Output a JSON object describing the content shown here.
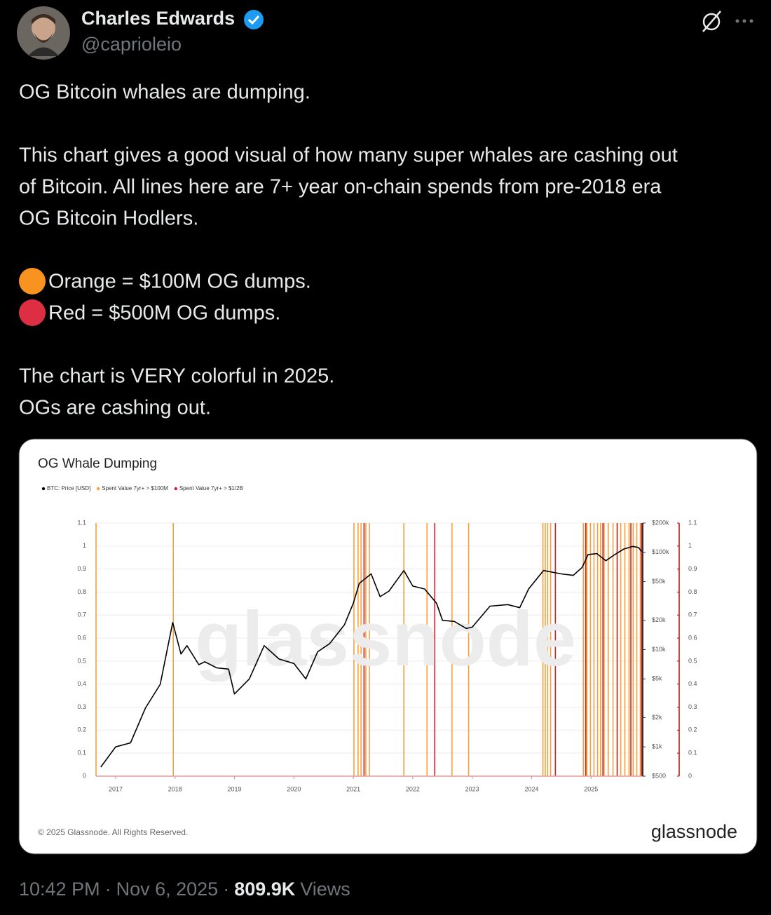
{
  "tweet": {
    "author": {
      "name": "Charles Edwards",
      "handle": "@caprioleio"
    },
    "paragraphs": [
      [
        "OG Bitcoin whales are dumping."
      ],
      [
        "This chart gives a good visual of how many super whales are cashing out",
        "of Bitcoin. All lines here are 7+ year on-chain spends from pre-2018 era",
        "OG Bitcoin Hodlers."
      ],
      [
        "Orange = $100M OG dumps.",
        "Red = $500M OG dumps."
      ],
      [
        "The chart is VERY colorful in 2025.",
        "OGs are cashing out."
      ]
    ],
    "footer": {
      "time": "10:42 PM",
      "separator": "·",
      "date": "Nov 6, 2025",
      "views": "809.9K",
      "views_label": "Views"
    }
  },
  "chart_data": {
    "type": "line",
    "title": "OG Whale Dumping",
    "watermark": "glassnode",
    "copyright": "© 2025 Glassnode. All Rights Reserved.",
    "logo": "glassnode",
    "xlim": [
      2016.67,
      2025.87
    ],
    "xticks": [
      2017,
      2018,
      2019,
      2020,
      2021,
      2022,
      2023,
      2024,
      2025
    ],
    "ylim": [
      0,
      1.1
    ],
    "yticks": [
      0,
      0.1,
      0.2,
      0.3,
      0.4,
      0.5,
      0.6,
      0.7,
      0.8,
      0.9,
      1,
      1.1
    ],
    "y2lim": [
      500,
      200000
    ],
    "y2log": true,
    "y2ticks": [
      {
        "value": 500,
        "label": "$500"
      },
      {
        "value": 1000,
        "label": "$1k"
      },
      {
        "value": 2000,
        "label": "$2k"
      },
      {
        "value": 5000,
        "label": "$5k"
      },
      {
        "value": 10000,
        "label": "$10k"
      },
      {
        "value": 20000,
        "label": "$20k"
      },
      {
        "value": 50000,
        "label": "$50k"
      },
      {
        "value": 100000,
        "label": "$100k"
      },
      {
        "value": 200000,
        "label": "$200k"
      }
    ],
    "grid": true,
    "series": [
      {
        "name": "BTC: Price [USD]",
        "color": "#000000",
        "axis": "y2",
        "style": "line",
        "x": [
          2016.75,
          2017.0,
          2017.25,
          2017.5,
          2017.75,
          2017.96,
          2018.1,
          2018.2,
          2018.4,
          2018.5,
          2018.7,
          2018.9,
          2019.0,
          2019.25,
          2019.5,
          2019.75,
          2020.0,
          2020.2,
          2020.4,
          2020.6,
          2020.85,
          2021.0,
          2021.1,
          2021.3,
          2021.45,
          2021.6,
          2021.85,
          2022.0,
          2022.2,
          2022.4,
          2022.5,
          2022.7,
          2022.9,
          2023.0,
          2023.3,
          2023.6,
          2023.8,
          2023.95,
          2024.2,
          2024.5,
          2024.7,
          2024.85,
          2024.95,
          2025.1,
          2025.25,
          2025.4,
          2025.55,
          2025.7,
          2025.8,
          2025.85
        ],
        "values": [
          620,
          1000,
          1100,
          2500,
          4400,
          19000,
          9000,
          11000,
          7000,
          7500,
          6500,
          6300,
          3500,
          5000,
          11000,
          8000,
          7200,
          5000,
          9500,
          11500,
          18000,
          30000,
          48000,
          60000,
          35000,
          40000,
          65000,
          45000,
          42000,
          30000,
          20000,
          19500,
          16500,
          17000,
          28000,
          29000,
          27000,
          42000,
          65000,
          60000,
          58000,
          70000,
          95000,
          97000,
          82000,
          95000,
          108000,
          115000,
          112000,
          102000
        ]
      },
      {
        "name": "Spent Value 7yr+ > $100M",
        "color": "#f5a03c",
        "style": "spike",
        "x": [
          2016.67,
          2017.97,
          2021.01,
          2021.08,
          2021.13,
          2021.18,
          2021.21,
          2021.27,
          2021.85,
          2022.24,
          2022.66,
          2022.94,
          2024.19,
          2024.23,
          2024.27,
          2024.32,
          2024.87,
          2024.93,
          2024.99,
          2025.05,
          2025.11,
          2025.16,
          2025.22,
          2025.29,
          2025.37,
          2025.44,
          2025.5,
          2025.57,
          2025.64,
          2025.71,
          2025.77,
          2025.83
        ],
        "values": [
          1.1,
          1.1,
          1.1,
          1.1,
          1.1,
          1.1,
          1.1,
          1.1,
          1.1,
          1.1,
          1.1,
          1.1,
          1.1,
          1.1,
          1.1,
          1.1,
          1.1,
          1.1,
          1.1,
          1.1,
          1.1,
          1.1,
          1.1,
          1.1,
          1.1,
          1.1,
          1.1,
          1.1,
          1.1,
          1.1,
          1.1,
          1.1
        ]
      },
      {
        "name": "Spent Value 7yr+ > $1/2B",
        "color": "#d0202a",
        "style": "spike",
        "x": [
          2021.18,
          2022.37,
          2024.4,
          2024.91,
          2025.2,
          2025.44,
          2025.67,
          2025.85
        ],
        "values": [
          1.1,
          1.1,
          1.1,
          1.1,
          1.1,
          1.1,
          1.1,
          1.1
        ]
      }
    ]
  }
}
